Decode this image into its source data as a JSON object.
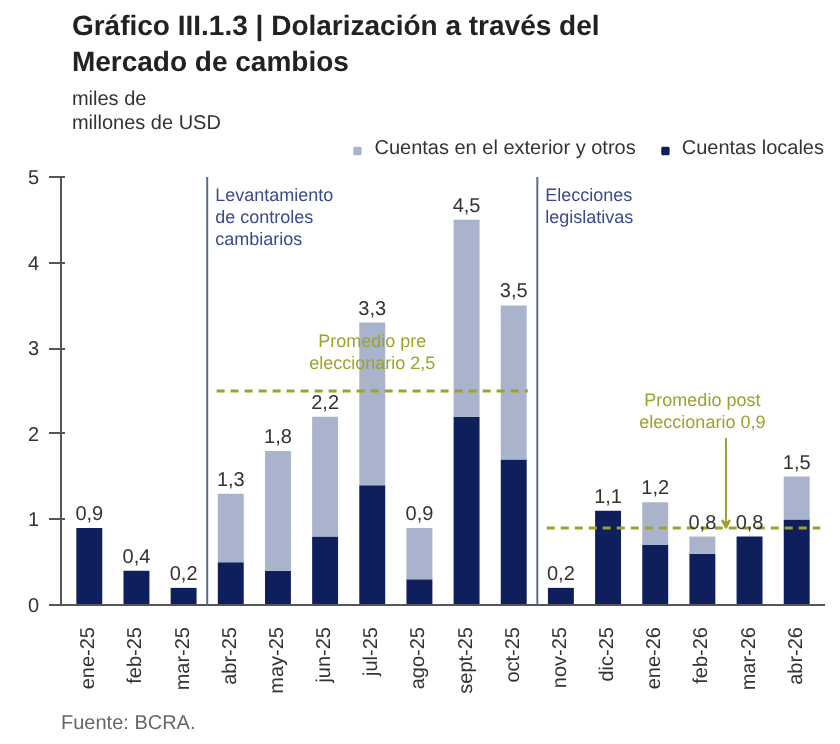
{
  "chart_data": {
    "type": "bar",
    "title": "Gráfico III.1.3 | Dolarización a través del Mercado de cambios",
    "ylabel": "miles de\nmillones de USD",
    "categories": [
      "ene-25",
      "feb-25",
      "mar-25",
      "abr-25",
      "may-25",
      "jun-25",
      "jul-25",
      "ago-25",
      "sept-25",
      "oct-25",
      "nov-25",
      "dic-25",
      "ene-26",
      "feb-26",
      "mar-26",
      "abr-26"
    ],
    "stacked": true,
    "series": [
      {
        "name": "Cuentas locales",
        "color": "#0f1f5c",
        "values": [
          0.9,
          0.4,
          0.2,
          0.5,
          0.4,
          0.8,
          1.4,
          0.3,
          2.2,
          1.7,
          0.2,
          1.1,
          0.7,
          0.6,
          0.8,
          1.0
        ]
      },
      {
        "name": "Cuentas en el exterior y otros",
        "color": "#a9b3cb",
        "values": [
          null,
          null,
          null,
          0.8,
          1.4,
          1.4,
          1.9,
          0.6,
          2.3,
          1.8,
          null,
          null,
          0.5,
          0.2,
          null,
          0.5
        ]
      }
    ],
    "totals": [
      "0,9",
      "0,4",
      "0,2",
      "1,3",
      "1,8",
      "2,2",
      "3,3",
      "0,9",
      "4,5",
      "3,5",
      "0,2",
      "1,1",
      "1,2",
      "0,8",
      "0,8",
      "1,5"
    ],
    "ylim": [
      0,
      5
    ],
    "yticks": [
      0,
      1,
      2,
      3,
      4,
      5
    ],
    "ref_lines": [
      {
        "axis": "y",
        "value": 2.5,
        "label": "Promedio pre\neleccionario 2,5",
        "color": "#9da22c",
        "line_style": "dashed"
      },
      {
        "axis": "y",
        "value": 0.9,
        "label": "Promedio post\neleccionario 0,9",
        "color": "#9da22c",
        "line_style": "dashed"
      }
    ],
    "annotations": [
      "Levantamiento\nde controles\ncambiarios",
      "Elecciones\nlegislativas",
      "Fuente: BCRA."
    ],
    "legend": "top",
    "grid": false
  }
}
